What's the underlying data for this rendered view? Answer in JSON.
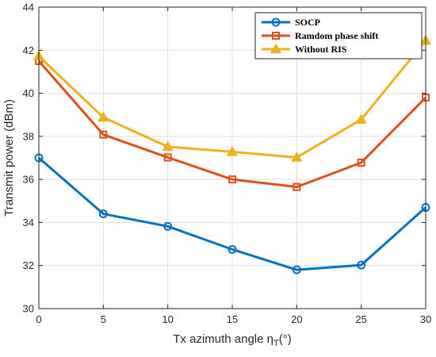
{
  "chart_data": {
    "type": "line",
    "xlabel": "Tx azimuth angle η",
    "xlabel_sub": "T",
    "xlabel_unit": "(°)",
    "ylabel": "Transmit power (dBm)",
    "xlim": [
      0,
      30
    ],
    "ylim": [
      30,
      44
    ],
    "xticks": [
      0,
      5,
      10,
      15,
      20,
      25,
      30
    ],
    "yticks": [
      30,
      32,
      34,
      36,
      38,
      40,
      42,
      44
    ],
    "grid": true,
    "legend_position": "top-right",
    "x": [
      0,
      5,
      10,
      15,
      20,
      25,
      30
    ],
    "series": [
      {
        "name": "SOCP",
        "values": [
          37.0,
          34.4,
          33.82,
          32.75,
          31.8,
          32.02,
          34.7
        ],
        "color": "#0072BD",
        "marker": "circle"
      },
      {
        "name": "Ramdom phase shift",
        "values": [
          41.5,
          38.08,
          37.02,
          36.0,
          35.65,
          36.78,
          39.8
        ],
        "color": "#D95319",
        "marker": "square"
      },
      {
        "name": "Without RIS",
        "values": [
          41.72,
          38.88,
          37.52,
          37.28,
          37.02,
          38.78,
          42.45
        ],
        "color": "#EDB120",
        "marker": "triangle"
      }
    ]
  }
}
